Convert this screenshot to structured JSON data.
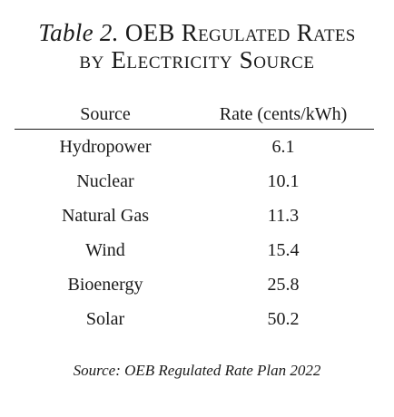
{
  "title": {
    "prefix": "Table 2.",
    "line1_main": "OEB Regulated Rates",
    "line2": "by Electricity Source"
  },
  "table": {
    "headers": {
      "source": "Source",
      "rate": "Rate (cents/kWh)"
    },
    "rows": [
      {
        "source": "Hydropower",
        "rate": "6.1"
      },
      {
        "source": "Nuclear",
        "rate": "10.1"
      },
      {
        "source": "Natural Gas",
        "rate": "11.3"
      },
      {
        "source": "Wind",
        "rate": "15.4"
      },
      {
        "source": "Bioenergy",
        "rate": "25.8"
      },
      {
        "source": "Solar",
        "rate": "50.2"
      }
    ]
  },
  "source_note": "Source: OEB Regulated Rate Plan 2022"
}
